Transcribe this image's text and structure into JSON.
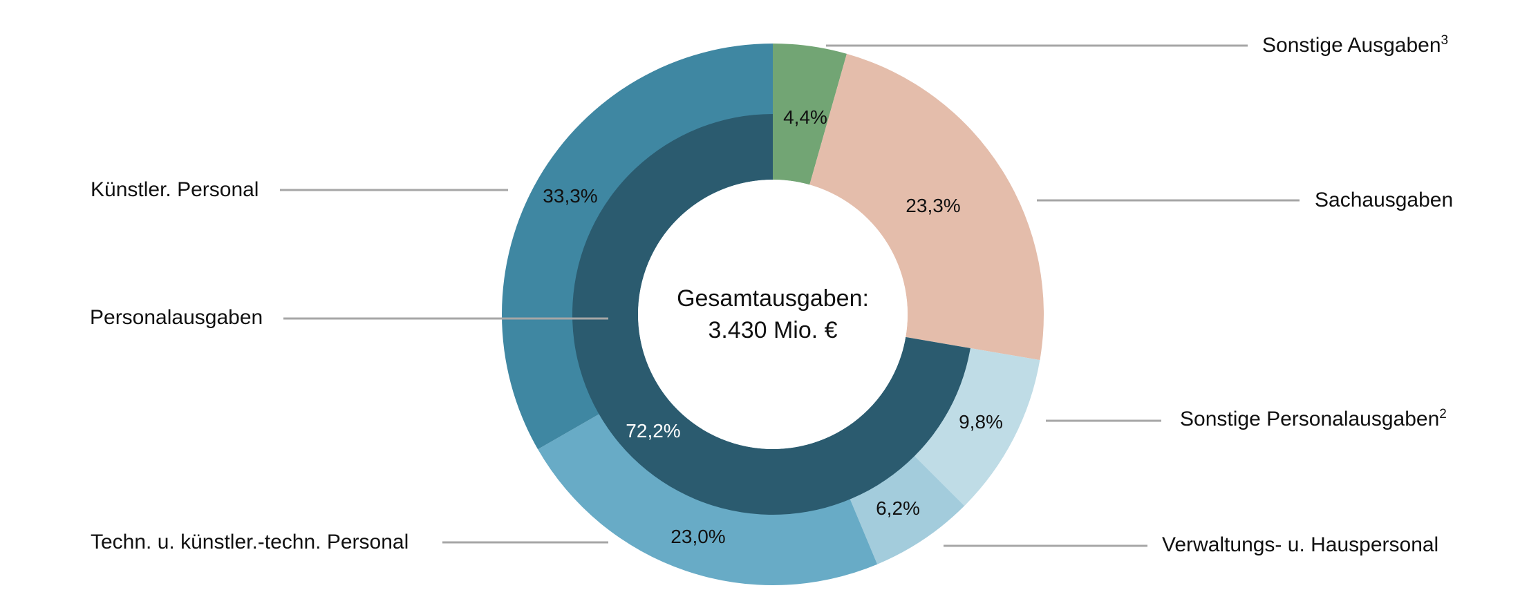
{
  "chart_data": {
    "type": "donut",
    "title": "",
    "center_label": [
      "Gesamtausgaben:",
      "3.430 Mio. €"
    ],
    "total": "3.430 Mio. €",
    "outer_ring": [
      {
        "name": "Sonstige Ausgaben",
        "footnote": "3",
        "value": 4.4,
        "label": "4,4%",
        "color": "#72a574"
      },
      {
        "name": "Sachausgaben",
        "footnote": "",
        "value": 23.3,
        "label": "23,3%",
        "color": "#e4bdab"
      },
      {
        "name": "Sonstige Personalausgaben",
        "footnote": "2",
        "value": 9.8,
        "label": "9,8%",
        "color": "#bfdce6"
      },
      {
        "name": "Verwaltungs- u. Hauspersonal",
        "footnote": "",
        "value": 6.2,
        "label": "6,2%",
        "color": "#a3ccdc"
      },
      {
        "name": "Techn. u. künstler.-techn. Personal",
        "footnote": "",
        "value": 23.0,
        "label": "23,0%",
        "color": "#68abc6"
      },
      {
        "name": "Künstler. Personal",
        "footnote": "",
        "value": 33.3,
        "label": "33,3%",
        "color": "#3f87a2"
      }
    ],
    "inner_ring": [
      {
        "name": "Personalausgaben",
        "value": 72.2,
        "label": "72,2%",
        "color": "#2b5b6f"
      }
    ],
    "legend_position": "callout labels left and right"
  },
  "labels": {
    "sonstige_ausgaben": "Sonstige Ausgaben",
    "sonstige_ausgaben_fn": "3",
    "sachausgaben": "Sachausgaben",
    "sonstige_personal": "Sonstige Personalausgaben",
    "sonstige_personal_fn": "2",
    "verwaltung": "Verwaltungs- u. Hauspersonal",
    "kuenstler": "Künstler. Personal",
    "personalausgaben": "Personalausgaben",
    "techn": "Techn. u. künstler.-techn. Personal"
  },
  "percentages": {
    "sonstige_ausgaben": "4,4%",
    "sachausgaben": "23,3%",
    "sonstige_personal": "9,8%",
    "verwaltung": "6,2%",
    "techn": "23,0%",
    "kuenstler": "33,3%",
    "personalausgaben": "72,2%"
  },
  "center": {
    "line1": "Gesamtausgaben:",
    "line2": "3.430 Mio. €"
  },
  "colors": {
    "leader_line": "#a6a6a6"
  }
}
